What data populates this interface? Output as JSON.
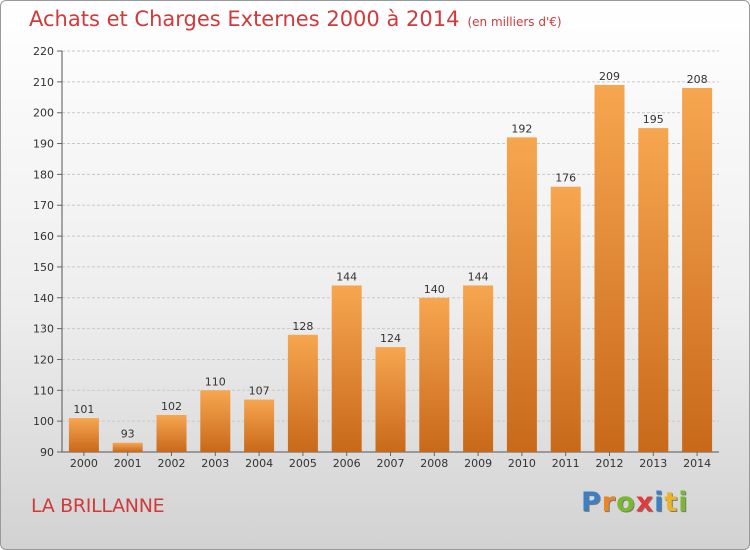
{
  "chart_data": {
    "type": "bar",
    "title": "Achats et Charges Externes 2000 à 2014",
    "subtitle": "(en milliers d'€)",
    "categories": [
      "2000",
      "2001",
      "2002",
      "2003",
      "2004",
      "2005",
      "2006",
      "2007",
      "2008",
      "2009",
      "2010",
      "2011",
      "2012",
      "2013",
      "2014"
    ],
    "values": [
      101,
      93,
      102,
      110,
      107,
      128,
      144,
      124,
      140,
      144,
      192,
      176,
      209,
      195,
      208
    ],
    "ylim": [
      90,
      220
    ],
    "yticks": [
      90,
      100,
      110,
      120,
      130,
      140,
      150,
      160,
      170,
      180,
      190,
      200,
      210,
      220
    ],
    "xlabel": "",
    "ylabel": "",
    "grid": true,
    "bar_color_light": "#f7a650",
    "bar_color_dark": "#c8691a",
    "text_color": "#d03a3a"
  },
  "footer": {
    "location": "LA BRILLANNE",
    "brand_letters": [
      {
        "char": "P",
        "color": "#3b7fc4"
      },
      {
        "char": "r",
        "color": "#e8862a"
      },
      {
        "char": "o",
        "color": "#7cb732"
      },
      {
        "char": "x",
        "color": "#e33b3b"
      },
      {
        "char": "i",
        "color": "#3b7fc4"
      },
      {
        "char": "t",
        "color": "#e8b52a"
      },
      {
        "char": "i",
        "color": "#7cb732"
      }
    ]
  }
}
